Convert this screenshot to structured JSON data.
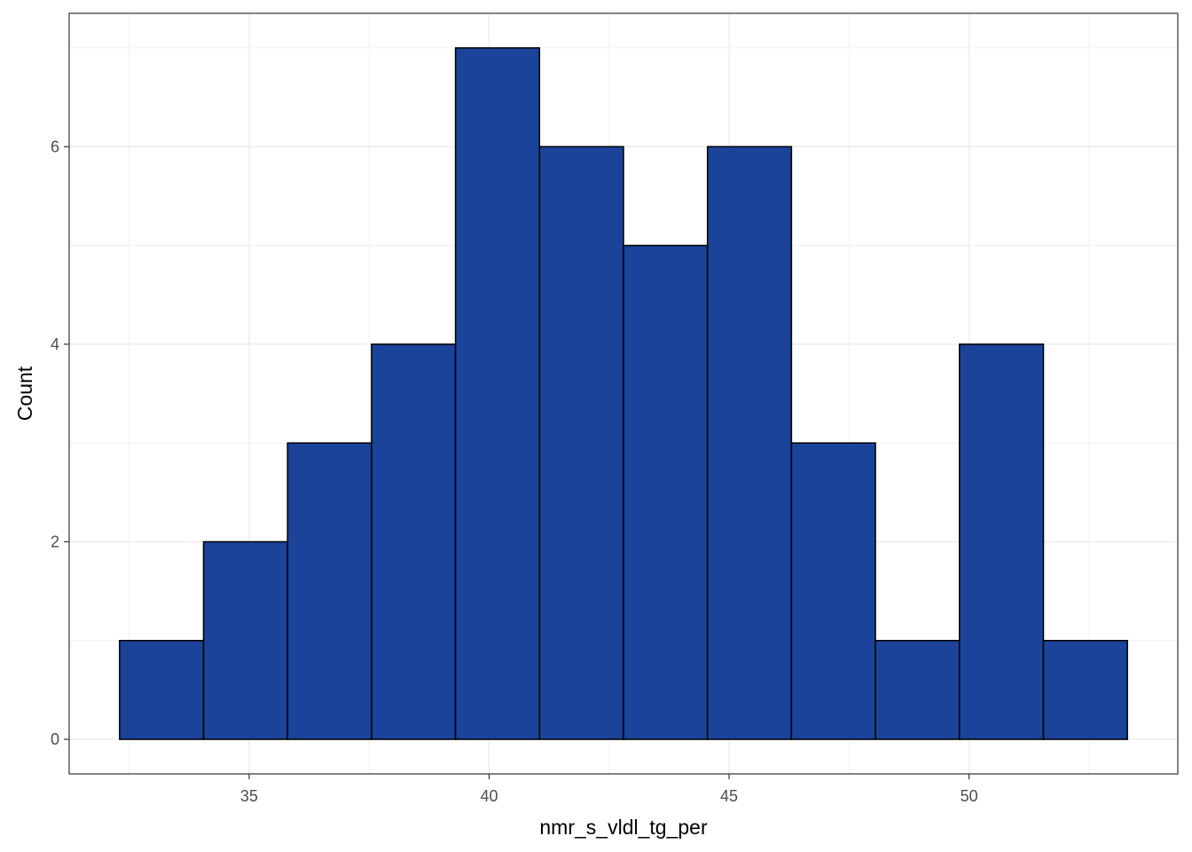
{
  "chart_data": {
    "type": "bar",
    "title": "",
    "xlabel": "nmr_s_vldl_tg_per",
    "ylabel": "Count",
    "bins": [
      {
        "x0": 32.3,
        "x1": 34.05,
        "count": 1
      },
      {
        "x0": 34.05,
        "x1": 35.8,
        "count": 2
      },
      {
        "x0": 35.8,
        "x1": 37.55,
        "count": 3
      },
      {
        "x0": 37.55,
        "x1": 39.3,
        "count": 4
      },
      {
        "x0": 39.3,
        "x1": 41.05,
        "count": 7
      },
      {
        "x0": 41.05,
        "x1": 42.8,
        "count": 6
      },
      {
        "x0": 42.8,
        "x1": 44.55,
        "count": 5
      },
      {
        "x0": 44.55,
        "x1": 46.3,
        "count": 6
      },
      {
        "x0": 46.3,
        "x1": 48.05,
        "count": 3
      },
      {
        "x0": 48.05,
        "x1": 49.8,
        "count": 1
      },
      {
        "x0": 49.8,
        "x1": 51.55,
        "count": 4
      },
      {
        "x0": 51.55,
        "x1": 53.3,
        "count": 1
      }
    ],
    "xlim": [
      31.25,
      54.35
    ],
    "ylim": [
      -0.35,
      7.35
    ],
    "x_ticks": [
      35,
      40,
      45,
      50
    ],
    "y_ticks": [
      0,
      2,
      4,
      6
    ],
    "grid": true,
    "colors": {
      "fill": "#1a4399",
      "outline": "#000000",
      "grid": "#ebebeb",
      "panel_border": "#333333",
      "tick_text": "#4d4d4d"
    }
  }
}
